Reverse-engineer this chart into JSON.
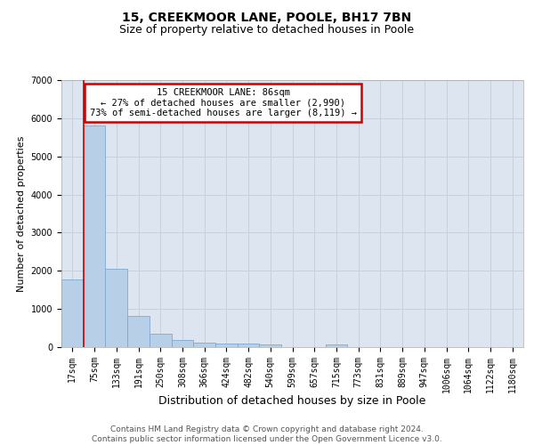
{
  "title1": "15, CREEKMOOR LANE, POOLE, BH17 7BN",
  "title2": "Size of property relative to detached houses in Poole",
  "xlabel": "Distribution of detached houses by size in Poole",
  "ylabel": "Number of detached properties",
  "bin_labels": [
    "17sqm",
    "75sqm",
    "133sqm",
    "191sqm",
    "250sqm",
    "308sqm",
    "366sqm",
    "424sqm",
    "482sqm",
    "540sqm",
    "599sqm",
    "657sqm",
    "715sqm",
    "773sqm",
    "831sqm",
    "889sqm",
    "947sqm",
    "1006sqm",
    "1064sqm",
    "1122sqm",
    "1180sqm"
  ],
  "bar_values": [
    1780,
    5800,
    2060,
    820,
    340,
    185,
    115,
    105,
    90,
    70,
    0,
    0,
    80,
    0,
    0,
    0,
    0,
    0,
    0,
    0,
    0
  ],
  "bar_color": "#b8cfe8",
  "bar_edge_color": "#7fa8d0",
  "red_line_color": "#cc0000",
  "red_line_x": 0.575,
  "annotation_line1": "15 CREEKMOOR LANE: 86sqm",
  "annotation_line2": "← 27% of detached houses are smaller (2,990)",
  "annotation_line3": "73% of semi-detached houses are larger (8,119) →",
  "annotation_box_edge": "#cc0000",
  "ylim": [
    0,
    7000
  ],
  "yticks": [
    0,
    1000,
    2000,
    3000,
    4000,
    5000,
    6000,
    7000
  ],
  "grid_color": "#c8d0dc",
  "bg_color": "#dde5f0",
  "footer1": "Contains HM Land Registry data © Crown copyright and database right 2024.",
  "footer2": "Contains public sector information licensed under the Open Government Licence v3.0.",
  "title1_fontsize": 10,
  "title2_fontsize": 9,
  "xlabel_fontsize": 9,
  "ylabel_fontsize": 8,
  "tick_fontsize": 7,
  "footer_fontsize": 6.5,
  "annotation_fontsize": 7.5
}
